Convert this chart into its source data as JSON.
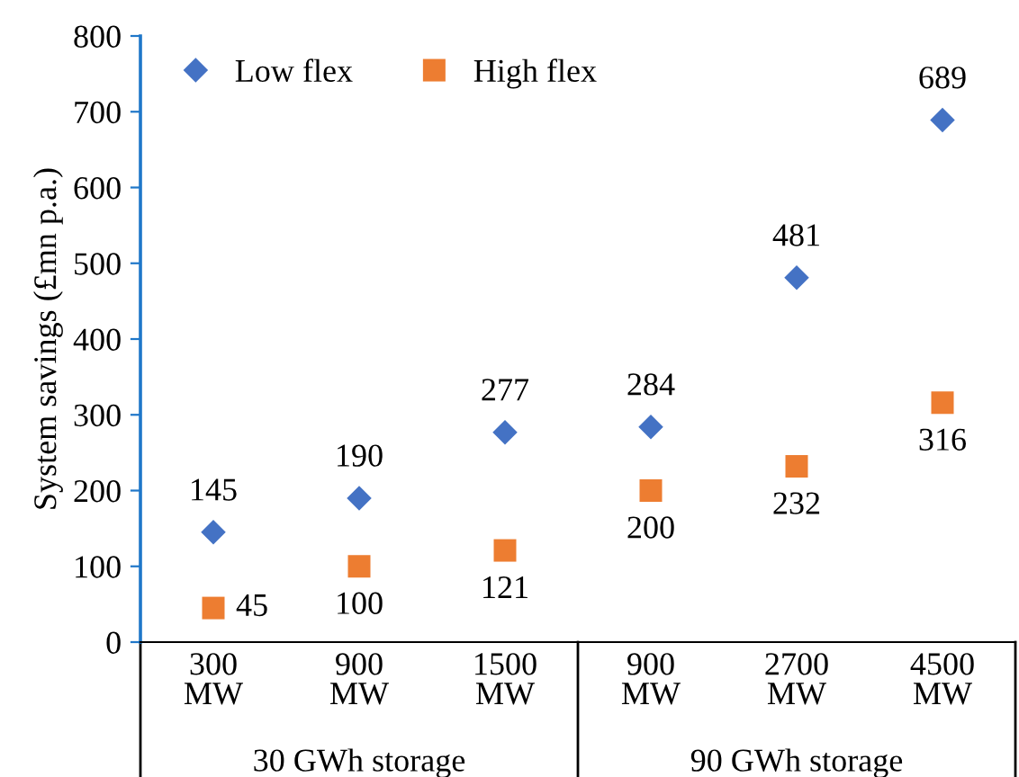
{
  "chart_data": {
    "type": "scatter",
    "ylabel": "System savings (£mn p.a.)",
    "categories": [
      "300\nMW",
      "900\nMW",
      "1500\nMW",
      "900\nMW",
      "2700\nMW",
      "4500\nMW"
    ],
    "series": [
      {
        "name": "Low flex",
        "color": "#4472c4",
        "marker": "diamond",
        "values": [
          145,
          190,
          277,
          284,
          481,
          689
        ]
      },
      {
        "name": "High flex",
        "color": "#ed7d31",
        "marker": "square",
        "values": [
          45,
          100,
          121,
          200,
          232,
          316
        ]
      }
    ],
    "annotations": [
      "30 GWh storage",
      "90 GWh storage"
    ],
    "ylim": [
      0,
      800
    ],
    "yticks": [
      0,
      100,
      200,
      300,
      400,
      500,
      600,
      700,
      800
    ],
    "data_labels": true,
    "grid": false,
    "legend": "top left"
  }
}
